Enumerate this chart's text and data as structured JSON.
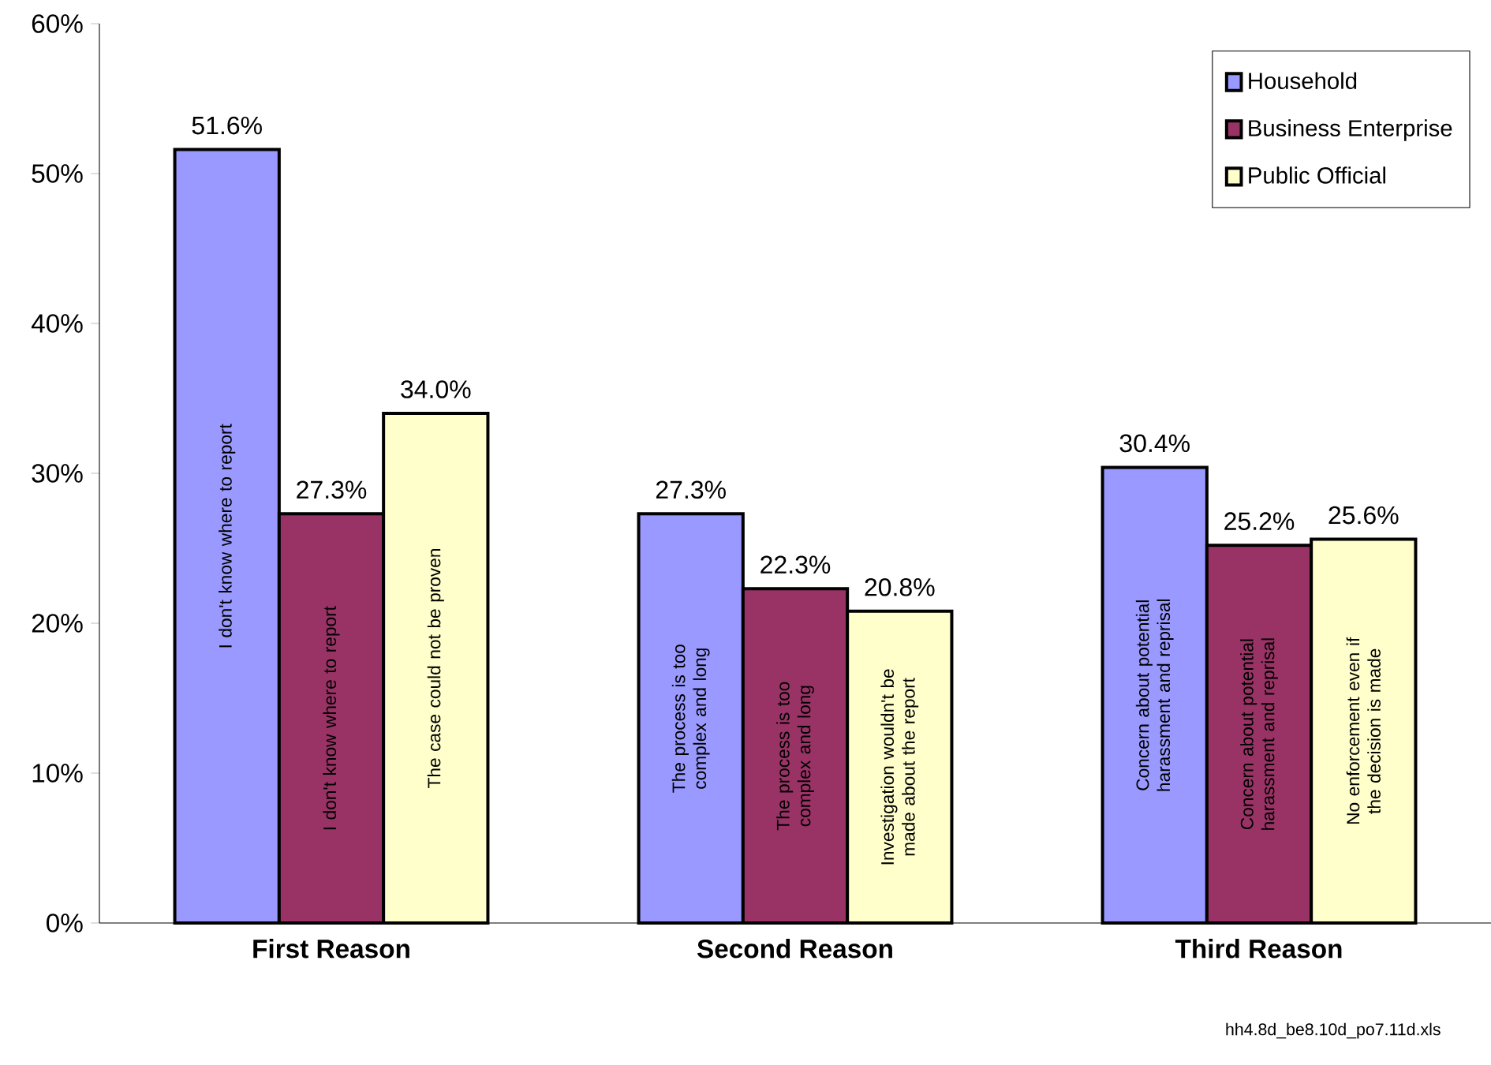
{
  "chart_data": {
    "type": "bar",
    "categories": [
      "First Reason",
      "Second Reason",
      "Third Reason"
    ],
    "series": [
      {
        "name": "Household",
        "color": "#9999ff",
        "values": [
          51.6,
          27.3,
          30.4
        ],
        "value_labels": [
          "51.6%",
          "27.3%",
          "30.4%"
        ]
      },
      {
        "name": "Business Enterprise",
        "color": "#993366",
        "values": [
          27.3,
          22.3,
          25.2
        ],
        "value_labels": [
          "27.3%",
          "22.3%",
          "25.2%"
        ]
      },
      {
        "name": "Public Official",
        "color": "#ffffcc",
        "values": [
          34.0,
          20.8,
          25.6
        ],
        "value_labels": [
          "34.0%",
          "20.8%",
          "25.6%"
        ]
      }
    ],
    "ylim": [
      0,
      60
    ],
    "yticks": [
      {
        "value": 0,
        "label": "0%"
      },
      {
        "value": 10,
        "label": "10%"
      },
      {
        "value": 20,
        "label": "20%"
      },
      {
        "value": 30,
        "label": "30%"
      },
      {
        "value": 40,
        "label": "40%"
      },
      {
        "value": 50,
        "label": "50%"
      },
      {
        "value": 60,
        "label": "60%"
      }
    ],
    "legend": "top right",
    "grid": false,
    "annotations": [
      "I don't know where to report",
      "I don't know where to report",
      "The case could not be proven",
      "The process is too complex and long",
      "The process is too complex and long",
      "Investigation wouldn't be made about the report",
      "Concern about potential harassment and reprisal",
      "Concern about potential harassment and reprisal",
      "No enforcement even if the decision is made",
      "hh4.8d_be8.10d_po7.11d.xls"
    ]
  }
}
